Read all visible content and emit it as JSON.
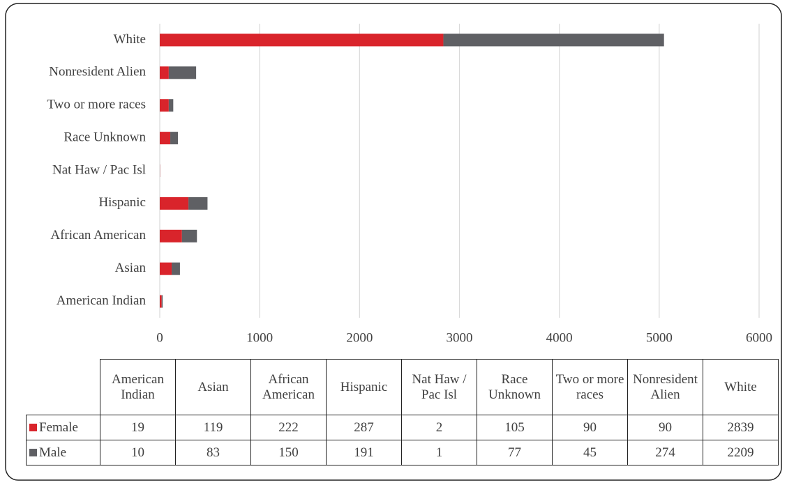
{
  "chart_data": {
    "type": "stacked-bar-horizontal",
    "categories": [
      "American Indian",
      "Asian",
      "African American",
      "Hispanic",
      "Nat Haw / Pac Isl",
      "Race Unknown",
      "Two or more races",
      "Nonresident Alien",
      "White"
    ],
    "series": [
      {
        "name": "Female",
        "color": "#d9242b",
        "values": [
          19,
          119,
          222,
          287,
          2,
          105,
          90,
          90,
          2839
        ]
      },
      {
        "name": "Male",
        "color": "#5f6064",
        "values": [
          10,
          83,
          150,
          191,
          1,
          77,
          45,
          274,
          2209
        ]
      }
    ],
    "xlim": [
      0,
      6000
    ],
    "xticks": [
      0,
      1000,
      2000,
      3000,
      4000,
      5000,
      6000
    ],
    "grid": true,
    "data_table": true
  }
}
